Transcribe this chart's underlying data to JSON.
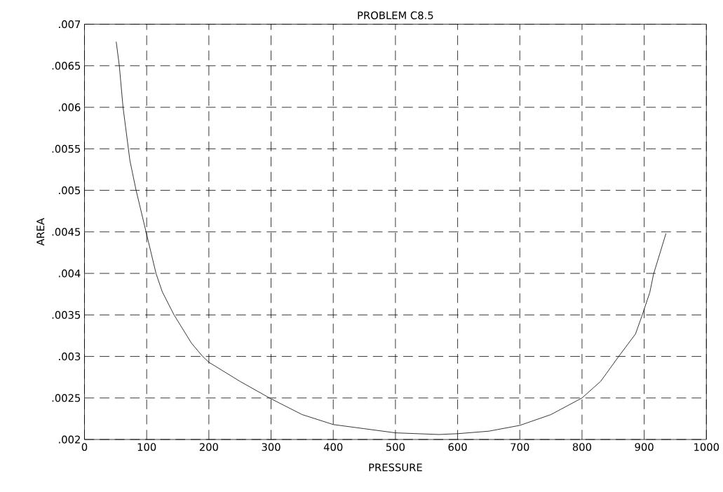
{
  "chart_data": {
    "type": "line",
    "title": "PROBLEM C8.5",
    "xlabel": "PRESSURE",
    "ylabel": "AREA",
    "x": [
      51,
      56,
      62,
      73,
      83,
      99,
      115,
      125,
      144,
      172,
      190,
      200,
      250,
      300,
      350,
      400,
      450,
      500,
      570,
      600,
      650,
      700,
      750,
      800,
      830,
      859,
      886,
      896,
      909,
      915,
      935
    ],
    "values": [
      0.00679,
      0.0065,
      0.006,
      0.00536,
      0.005,
      0.0045,
      0.004,
      0.00378,
      0.0035,
      0.00316,
      0.003,
      0.00293,
      0.0027,
      0.00249,
      0.0023,
      0.00218,
      0.00213,
      0.00208,
      0.00206,
      0.00207,
      0.0021,
      0.00217,
      0.0023,
      0.0025,
      0.0027,
      0.003,
      0.00327,
      0.00348,
      0.00377,
      0.00399,
      0.00448
    ],
    "color": "#000000",
    "line_style": "solid",
    "marker": "none",
    "xlim": [
      0,
      1000
    ],
    "xticks": [
      0,
      100,
      200,
      300,
      400,
      500,
      600,
      700,
      800,
      900,
      1000
    ],
    "ylim": [
      0.002,
      0.007
    ],
    "yticks": [
      {
        "value": 0.002,
        "label": ".002"
      },
      {
        "value": 0.0025,
        "label": ".0025"
      },
      {
        "value": 0.003,
        "label": ".003"
      },
      {
        "value": 0.0035,
        "label": ".0035"
      },
      {
        "value": 0.004,
        "label": ".004"
      },
      {
        "value": 0.0045,
        "label": ".0045"
      },
      {
        "value": 0.005,
        "label": ".005"
      },
      {
        "value": 0.0055,
        "label": ".0055"
      },
      {
        "value": 0.006,
        "label": ".006"
      },
      {
        "value": 0.0065,
        "label": ".0065"
      },
      {
        "value": 0.007,
        "label": ".007"
      }
    ],
    "grid": true
  }
}
